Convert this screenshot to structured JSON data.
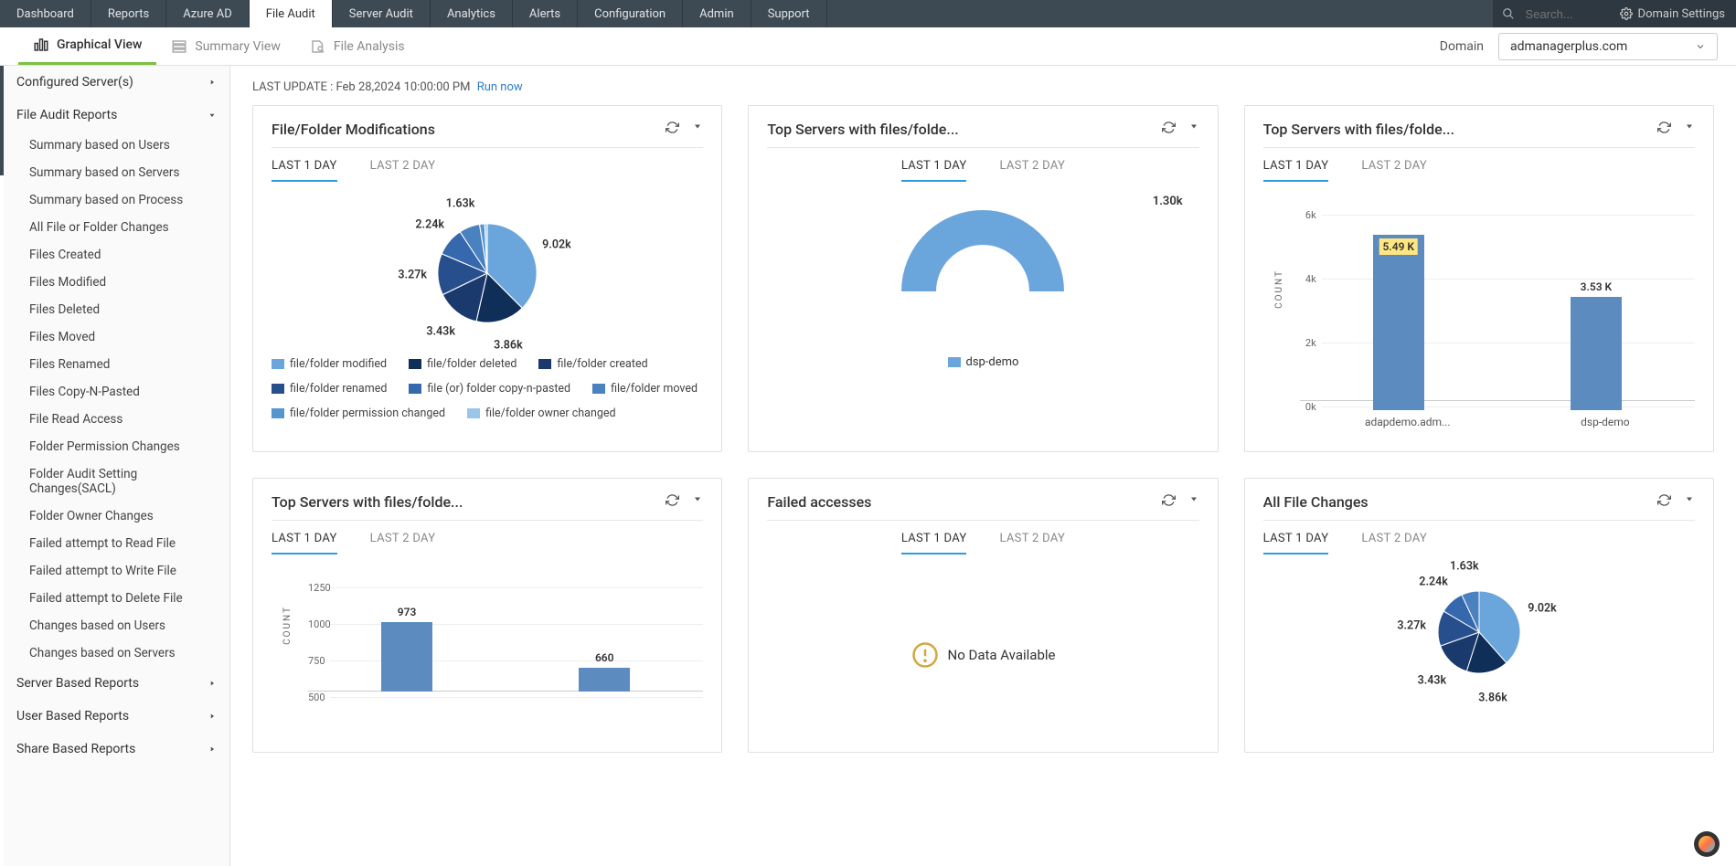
{
  "topnav": {
    "tabs": [
      "Dashboard",
      "Reports",
      "Azure AD",
      "File Audit",
      "Server Audit",
      "Analytics",
      "Alerts",
      "Configuration",
      "Admin",
      "Support"
    ],
    "active_index": 3,
    "search_placeholder": "Search...",
    "domain_settings_label": "Domain Settings"
  },
  "subnav": {
    "items": [
      "Graphical View",
      "Summary View",
      "File Analysis"
    ],
    "active_index": 0,
    "domain_label": "Domain",
    "domain_value": "admanagerplus.com"
  },
  "sidebar": {
    "sections": [
      {
        "label": "Configured Server(s)",
        "expanded": false
      },
      {
        "label": "File Audit Reports",
        "expanded": true,
        "items": [
          "Summary based on Users",
          "Summary based on Servers",
          "Summary based on Process",
          "All File or Folder Changes",
          "Files Created",
          "Files Modified",
          "Files Deleted",
          "Files Moved",
          "Files Renamed",
          "Files Copy-N-Pasted",
          "File Read Access",
          "Folder Permission Changes",
          "Folder Audit Setting Changes(SACL)",
          "Folder Owner Changes",
          "Failed attempt to Read File",
          "Failed attempt to Write File",
          "Failed attempt to Delete File",
          "Changes based on Users",
          "Changes based on Servers"
        ]
      },
      {
        "label": "Server Based Reports",
        "expanded": false
      },
      {
        "label": "User Based Reports",
        "expanded": false
      },
      {
        "label": "Share Based Reports",
        "expanded": false
      }
    ]
  },
  "main": {
    "last_update_prefix": "LAST UPDATE : ",
    "last_update_value": "Feb 28,2024 10:00:00 PM",
    "run_now": "Run now"
  },
  "tabs_common": {
    "t1": "LAST 1 DAY",
    "t2": "LAST 2 DAY"
  },
  "cards": {
    "pie": {
      "title": "File/Folder Modifications",
      "type": "pie",
      "slices": [
        {
          "label": "file/folder modified",
          "value_label": "9.02k",
          "value": 9020,
          "color": "#6aa6dc"
        },
        {
          "label": "file/folder deleted",
          "value_label": "3.86k",
          "value": 3860,
          "color": "#0f2e58"
        },
        {
          "label": "file/folder created",
          "value_label": "3.43k",
          "value": 3430,
          "color": "#1a3a6e"
        },
        {
          "label": "file/folder renamed",
          "value_label": "3.27k",
          "value": 3270,
          "color": "#274f8d"
        },
        {
          "label": "file (or) folder copy-n-pasted",
          "value_label": "2.24k",
          "value": 2240,
          "color": "#3568ad"
        },
        {
          "label": "file/folder moved",
          "value_label": "1.63k",
          "value": 1630,
          "color": "#4a81bf"
        },
        {
          "label": "file/folder permission changed",
          "value_label": "",
          "value": 400,
          "color": "#5696cf"
        },
        {
          "label": "file/folder owner changed",
          "value_label": "",
          "value": 200,
          "color": "#9ac6e8"
        }
      ]
    },
    "gauge": {
      "title": "Top Servers with files/folde...",
      "type": "half-donut",
      "value_label": "1.30k",
      "color": "#6aa6dc",
      "legend_label": "dsp-demo"
    },
    "bar1": {
      "title": "Top Servers with files/folde...",
      "type": "bar",
      "ylabel": "COUNT",
      "ylim": [
        0,
        6000
      ],
      "ytick_step": 2000,
      "yticks_labels": [
        "0k",
        "2k",
        "4k",
        "6k"
      ],
      "categories": [
        "adapdemo.adm...",
        "dsp-demo"
      ],
      "values": [
        5490,
        3530
      ],
      "value_labels": [
        "5.49 K",
        "3.53 K"
      ],
      "bar_color": "#5b8bbf",
      "highlight_color": "#ffe680"
    },
    "bar2": {
      "title": "Top Servers with files/folde...",
      "type": "bar",
      "ylabel": "COUNT",
      "ylim": [
        500,
        1250
      ],
      "yticks": [
        1250,
        1000,
        750,
        500
      ],
      "categories": [
        "",
        ""
      ],
      "values": [
        973,
        660
      ],
      "value_labels": [
        "973",
        "660"
      ],
      "bar_color": "#5b8bbf"
    },
    "failed": {
      "title": "Failed accesses",
      "nodata": "No Data Available"
    },
    "all_changes": {
      "title": "All File Changes",
      "type": "pie",
      "slices": [
        {
          "label": "",
          "value_label": "9.02k",
          "value": 9020,
          "color": "#6aa6dc"
        },
        {
          "label": "",
          "value_label": "3.86k",
          "value": 3860,
          "color": "#0f2e58"
        },
        {
          "label": "",
          "value_label": "3.43k",
          "value": 3430,
          "color": "#1a3a6e"
        },
        {
          "label": "",
          "value_label": "3.27k",
          "value": 3270,
          "color": "#274f8d"
        },
        {
          "label": "",
          "value_label": "2.24k",
          "value": 2240,
          "color": "#3568ad"
        },
        {
          "label": "",
          "value_label": "1.63k",
          "value": 1630,
          "color": "#4a81bf"
        }
      ]
    }
  }
}
